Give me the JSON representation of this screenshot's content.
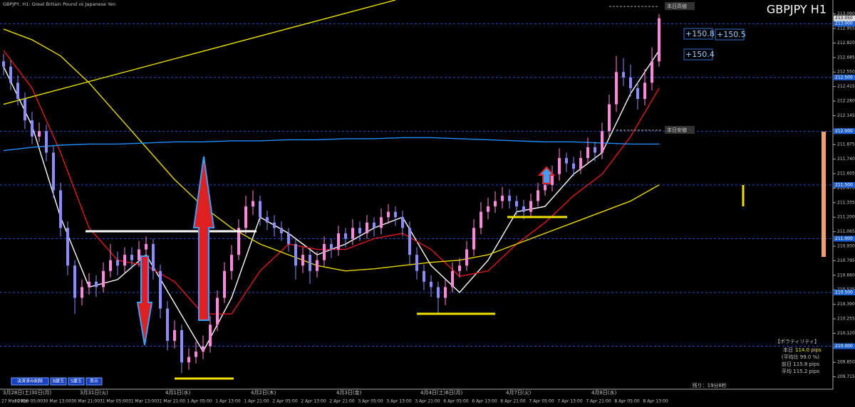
{
  "chart_data": {
    "type": "candlestick",
    "title": "GBPJPY, H1:  Great Britain Pound vs Japanese Yen",
    "symbol_label": "GBPJPY H1",
    "ylim": [
      209.6,
      213.22
    ],
    "yticks": [
      {
        "value": 213.09,
        "label": "213.090"
      },
      {
        "value": 212.955,
        "label": "212.955"
      },
      {
        "value": 212.82,
        "label": "212.820"
      },
      {
        "value": 212.685,
        "label": "212.685"
      },
      {
        "value": 212.55,
        "label": "212.550"
      },
      {
        "value": 212.415,
        "label": "212.415"
      },
      {
        "value": 212.28,
        "label": "212.280"
      },
      {
        "value": 212.145,
        "label": "212.145"
      },
      {
        "value": 212.01,
        "label": "212.010"
      },
      {
        "value": 211.875,
        "label": "211.875"
      },
      {
        "value": 211.74,
        "label": "211.740"
      },
      {
        "value": 211.605,
        "label": "211.605"
      },
      {
        "value": 211.47,
        "label": "211.470"
      },
      {
        "value": 211.335,
        "label": "211.335"
      },
      {
        "value": 211.2,
        "label": "211.200"
      },
      {
        "value": 211.065,
        "label": "211.065"
      },
      {
        "value": 210.93,
        "label": "210.930"
      },
      {
        "value": 210.795,
        "label": "210.795"
      },
      {
        "value": 210.66,
        "label": "210.660"
      },
      {
        "value": 210.525,
        "label": "210.525"
      },
      {
        "value": 210.39,
        "label": "210.390"
      },
      {
        "value": 210.255,
        "label": "210.255"
      },
      {
        "value": 210.12,
        "label": "210.120"
      },
      {
        "value": 209.985,
        "label": "209.985"
      },
      {
        "value": 209.85,
        "label": "209.850"
      },
      {
        "value": 209.715,
        "label": "209.715"
      }
    ],
    "levels": [
      {
        "value": 213,
        "label": "213.000"
      },
      {
        "value": 212.5,
        "label": "212.500"
      },
      {
        "value": 212,
        "label": "212.000"
      },
      {
        "value": 211.5,
        "label": "211.500"
      },
      {
        "value": 211,
        "label": "211.000"
      },
      {
        "value": 210.5,
        "label": "210.500"
      },
      {
        "value": 210,
        "label": "210.000"
      }
    ],
    "current_price": {
      "value": 213.05,
      "label": "213.050"
    },
    "time_labels": [
      "27 Mar 2026",
      "30 Mar 05:00",
      "30 Mar 13:00",
      "30 Mar 21:00",
      "31 Mar 05:00",
      "31 Mar 13:00",
      "31 Mar 21:00",
      "1 Apr 05:00",
      "1 Apr 13:00",
      "1 Apr 21:00",
      "2 Apr 05:00",
      "2 Apr 13:00",
      "2 Apr 21:00",
      "3 Apr 05:00",
      "3 Apr 13:00",
      "3 Apr 21:00",
      "6 Apr 05:00",
      "6 Apr 13:00",
      "6 Apr 21:00",
      "7 Apr 05:00",
      "7 Apr 13:00",
      "7 Apr 21:00",
      "8 Apr 05:00",
      "8 Apr 13:00"
    ],
    "day_labels": [
      "3月28日(土)30日(月)",
      "3月31日(火)",
      "4月1日(水)",
      "4月2日(木)",
      "4月3日(金)",
      "4月4日(土)6日(月)",
      "4月7日(火)",
      "4月8日(水)"
    ],
    "up_color": "#ff88dd",
    "down_color": "#8c8cff",
    "candles": [
      [
        212.65,
        212.72,
        212.52,
        212.6
      ],
      [
        212.6,
        212.66,
        212.38,
        212.45
      ],
      [
        212.45,
        212.52,
        212.24,
        212.3
      ],
      [
        212.3,
        212.36,
        212.02,
        212.1
      ],
      [
        212.1,
        212.18,
        211.88,
        211.95
      ],
      [
        211.95,
        212.08,
        211.9,
        212.0
      ],
      [
        212.0,
        212.06,
        211.72,
        211.8
      ],
      [
        211.8,
        211.86,
        211.38,
        211.45
      ],
      [
        211.45,
        211.52,
        211.02,
        211.1
      ],
      [
        211.1,
        211.16,
        210.66,
        210.75
      ],
      [
        210.75,
        210.8,
        210.3,
        210.45
      ],
      [
        210.45,
        210.62,
        210.38,
        210.55
      ],
      [
        210.55,
        210.68,
        210.48,
        210.6
      ],
      [
        210.6,
        210.66,
        210.46,
        210.55
      ],
      [
        210.55,
        210.78,
        210.5,
        210.7
      ],
      [
        210.7,
        210.95,
        210.64,
        210.8
      ],
      [
        210.8,
        210.88,
        210.66,
        210.75
      ],
      [
        210.75,
        210.92,
        210.68,
        210.85
      ],
      [
        210.85,
        210.92,
        210.72,
        210.8
      ],
      [
        210.8,
        210.98,
        210.74,
        210.9
      ],
      [
        210.9,
        211.02,
        210.84,
        210.95
      ],
      [
        210.95,
        211.0,
        210.62,
        210.7
      ],
      [
        210.7,
        210.76,
        210.26,
        210.35
      ],
      [
        210.35,
        210.42,
        209.96,
        210.05
      ],
      [
        210.05,
        210.24,
        209.98,
        210.15
      ],
      [
        210.15,
        210.2,
        209.75,
        209.85
      ],
      [
        209.85,
        209.98,
        209.78,
        209.9
      ],
      [
        209.9,
        210.04,
        209.84,
        209.95
      ],
      [
        209.95,
        210.1,
        209.88,
        210.0
      ],
      [
        210.0,
        210.28,
        209.94,
        210.2
      ],
      [
        210.2,
        210.52,
        210.14,
        210.45
      ],
      [
        210.45,
        210.78,
        210.4,
        210.7
      ],
      [
        210.7,
        210.94,
        210.62,
        210.85
      ],
      [
        210.85,
        211.18,
        210.8,
        211.1
      ],
      [
        211.1,
        211.4,
        211.04,
        211.3
      ],
      [
        211.3,
        211.45,
        211.22,
        211.35
      ],
      [
        211.35,
        211.4,
        211.12,
        211.2
      ],
      [
        211.2,
        211.26,
        211.08,
        211.15
      ],
      [
        211.15,
        211.22,
        211.02,
        211.1
      ],
      [
        211.1,
        211.16,
        210.98,
        211.05
      ],
      [
        211.05,
        211.1,
        210.88,
        210.95
      ],
      [
        210.95,
        211.0,
        210.62,
        210.75
      ],
      [
        210.75,
        210.92,
        210.68,
        210.85
      ],
      [
        210.85,
        210.9,
        210.58,
        210.7
      ],
      [
        210.7,
        210.88,
        210.64,
        210.8
      ],
      [
        210.8,
        211.02,
        210.74,
        210.95
      ],
      [
        210.95,
        211.0,
        210.82,
        210.9
      ],
      [
        210.9,
        211.12,
        210.84,
        211.05
      ],
      [
        211.05,
        211.1,
        210.92,
        211.0
      ],
      [
        211.0,
        211.18,
        210.94,
        211.1
      ],
      [
        211.1,
        211.16,
        210.98,
        211.05
      ],
      [
        211.05,
        211.22,
        211.0,
        211.15
      ],
      [
        211.15,
        211.2,
        211.02,
        211.1
      ],
      [
        211.1,
        211.28,
        211.04,
        211.2
      ],
      [
        211.2,
        211.32,
        211.14,
        211.25
      ],
      [
        211.25,
        211.3,
        211.12,
        211.2
      ],
      [
        211.2,
        211.26,
        211.02,
        211.1
      ],
      [
        211.1,
        211.16,
        210.76,
        210.85
      ],
      [
        210.85,
        210.92,
        210.62,
        210.7
      ],
      [
        210.7,
        210.76,
        210.52,
        210.6
      ],
      [
        210.6,
        210.66,
        210.46,
        210.55
      ],
      [
        210.55,
        210.6,
        210.3,
        210.45
      ],
      [
        210.45,
        210.62,
        210.38,
        210.55
      ],
      [
        210.55,
        210.78,
        210.5,
        210.7
      ],
      [
        210.7,
        210.82,
        210.64,
        210.75
      ],
      [
        210.75,
        210.98,
        210.7,
        210.9
      ],
      [
        210.9,
        211.18,
        210.84,
        211.1
      ],
      [
        211.1,
        211.34,
        211.04,
        211.25
      ],
      [
        211.25,
        211.38,
        211.18,
        211.3
      ],
      [
        211.3,
        211.44,
        211.24,
        211.35
      ],
      [
        211.35,
        211.48,
        211.28,
        211.4
      ],
      [
        211.4,
        211.46,
        211.28,
        211.35
      ],
      [
        211.35,
        211.4,
        211.22,
        211.3
      ],
      [
        211.3,
        211.36,
        211.18,
        211.25
      ],
      [
        211.25,
        211.42,
        211.2,
        211.35
      ],
      [
        211.35,
        211.52,
        211.3,
        211.45
      ],
      [
        211.45,
        211.58,
        211.4,
        211.5
      ],
      [
        211.5,
        211.68,
        211.44,
        211.6
      ],
      [
        211.6,
        211.84,
        211.54,
        211.75
      ],
      [
        211.75,
        211.8,
        211.62,
        211.7
      ],
      [
        211.7,
        211.76,
        211.58,
        211.65
      ],
      [
        211.65,
        211.82,
        211.6,
        211.75
      ],
      [
        211.75,
        211.94,
        211.7,
        211.85
      ],
      [
        211.85,
        211.9,
        211.72,
        211.8
      ],
      [
        211.8,
        212.08,
        211.74,
        212.0
      ],
      [
        212.0,
        212.34,
        211.94,
        212.25
      ],
      [
        212.25,
        212.7,
        212.18,
        212.55
      ],
      [
        212.55,
        212.68,
        212.42,
        212.5
      ],
      [
        212.5,
        212.62,
        212.32,
        212.4
      ],
      [
        212.4,
        212.46,
        212.2,
        212.3
      ],
      [
        212.3,
        212.58,
        212.24,
        212.45
      ],
      [
        212.45,
        212.78,
        212.38,
        212.65
      ],
      [
        212.65,
        213.09,
        212.6,
        213.05
      ]
    ],
    "series": [
      {
        "color": "#ffffff",
        "x": [
          0,
          4,
          8,
          12,
          16,
          20,
          24,
          28,
          32,
          36,
          40,
          44,
          48,
          52,
          56,
          60,
          64,
          68,
          72,
          76,
          80,
          84,
          88,
          92
        ],
        "values": [
          212.6,
          212.05,
          211.2,
          210.55,
          210.62,
          210.85,
          210.4,
          209.95,
          210.45,
          211.2,
          211.05,
          210.85,
          210.95,
          211.1,
          211.2,
          210.75,
          210.5,
          210.8,
          211.25,
          211.3,
          211.6,
          211.8,
          212.35,
          212.75
        ]
      },
      {
        "color": "#e01818",
        "x": [
          0,
          4,
          8,
          12,
          16,
          20,
          24,
          28,
          32,
          36,
          40,
          44,
          48,
          52,
          56,
          60,
          64,
          68,
          72,
          76,
          80,
          84,
          88,
          92
        ],
        "values": [
          212.75,
          212.4,
          211.8,
          211.1,
          210.8,
          210.75,
          210.6,
          210.3,
          210.3,
          210.7,
          210.95,
          210.9,
          210.9,
          211.0,
          211.05,
          210.9,
          210.65,
          210.7,
          210.95,
          211.15,
          211.4,
          211.6,
          211.95,
          212.4
        ]
      },
      {
        "color": "#e8d800",
        "x": [
          0,
          4,
          8,
          12,
          16,
          20,
          24,
          28,
          32,
          36,
          40,
          44,
          48,
          52,
          56,
          60,
          64,
          68,
          72,
          76,
          80,
          84,
          88,
          92
        ],
        "values": [
          212.95,
          212.85,
          212.7,
          212.45,
          212.15,
          211.85,
          211.55,
          211.3,
          211.1,
          210.95,
          210.85,
          210.75,
          210.7,
          210.72,
          210.75,
          210.78,
          210.8,
          210.85,
          210.95,
          211.05,
          211.15,
          211.25,
          211.35,
          211.5
        ]
      },
      {
        "color": "#1e90ff",
        "x": [
          0,
          4,
          8,
          12,
          16,
          20,
          24,
          28,
          32,
          36,
          40,
          44,
          48,
          52,
          56,
          60,
          64,
          68,
          72,
          76,
          80,
          84,
          88,
          92
        ],
        "values": [
          211.82,
          211.85,
          211.87,
          211.88,
          211.88,
          211.89,
          211.9,
          211.9,
          211.91,
          211.91,
          211.92,
          211.92,
          211.93,
          211.93,
          211.94,
          211.94,
          211.93,
          211.92,
          211.91,
          211.9,
          211.9,
          211.89,
          211.88,
          211.88
        ]
      },
      {
        "color": "#e8e000",
        "x": [
          0,
          55
        ],
        "values": [
          212.25,
          213.22
        ]
      }
    ],
    "annotations": {
      "day_high": "本日高値",
      "day_low": "本日安値",
      "pips": [
        "+150.8",
        "+150.5",
        "+150.4"
      ],
      "remaining": "残り：19分8秒"
    },
    "volatility": {
      "title": "【ボラティリティ】",
      "today": "本日",
      "today_value": "114.0 pips",
      "ratio": "(平均比  99.0 %)",
      "prev": "前日 115.8 pips",
      "avg": "平均 115.2 pips"
    },
    "buttons": [
      "決済済み削除",
      "B建玉",
      "S建玉",
      "表示"
    ]
  }
}
